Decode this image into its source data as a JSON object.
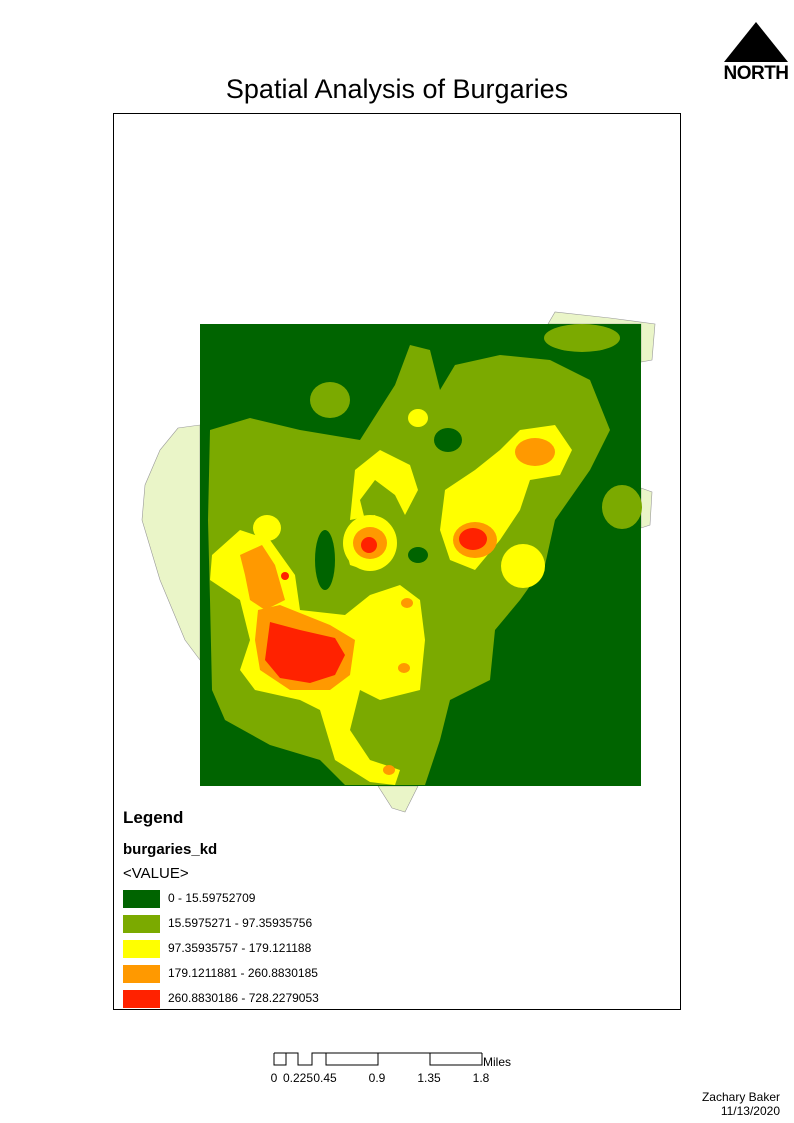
{
  "title": "Spatial Analysis of Burgaries",
  "north_arrow": {
    "label": "NORTH",
    "icon": "north-arrow-icon"
  },
  "legend": {
    "heading": "Legend",
    "layer": "burgaries_kd",
    "field": "<VALUE>",
    "classes": [
      {
        "label": "0 - 15.59752709",
        "color": "#006400"
      },
      {
        "label": "15.5975271 - 97.35935756",
        "color": "#7BAA00"
      },
      {
        "label": "97.35935757 - 179.121188",
        "color": "#FFFF00"
      },
      {
        "label": "179.1211881 - 260.8830185",
        "color": "#FF9900"
      },
      {
        "label": "260.8830186 - 728.2279053",
        "color": "#FF2200"
      }
    ]
  },
  "boundary_color": "#EAF5C8",
  "scale_bar": {
    "unit": "Miles",
    "ticks": [
      "0",
      "0.225",
      "0.45",
      "0.9",
      "1.35",
      "1.8"
    ]
  },
  "author": "Zachary Baker",
  "date": "11/13/2020"
}
